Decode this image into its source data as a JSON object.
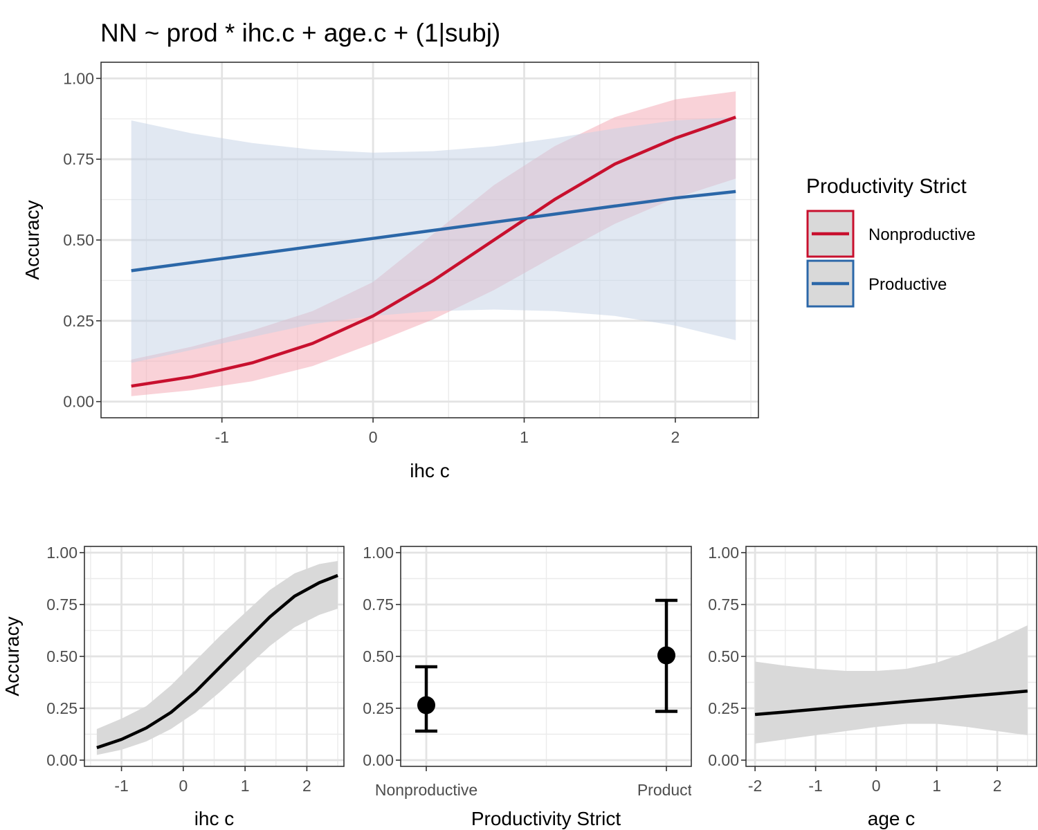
{
  "chart_data": [
    {
      "type": "line",
      "title": "NN ~ prod * ihc.c + age.c + (1|subj)",
      "xlabel": "ihc c",
      "ylabel": "Accuracy",
      "xlim": [
        -1.8,
        2.55
      ],
      "ylim": [
        -0.05,
        1.05
      ],
      "xticks": [
        -1,
        0,
        1,
        2
      ],
      "yticks": [
        0,
        0.25,
        0.5,
        0.75,
        1
      ],
      "xtick_labels": [
        "-1",
        "0",
        "1",
        "2"
      ],
      "ytick_labels": [
        "0.00",
        "0.25",
        "0.50",
        "0.75",
        "1.00"
      ],
      "grid": true,
      "legend_title": "Productivity Strict",
      "legend_position": "right",
      "x": [
        -1.6,
        -1.2,
        -0.8,
        -0.4,
        0.0,
        0.4,
        0.8,
        1.2,
        1.6,
        2.0,
        2.4
      ],
      "series": [
        {
          "name": "Nonproductive",
          "color": "#C8102E",
          "fill": "#F4A6B2",
          "y": [
            0.048,
            0.077,
            0.12,
            0.18,
            0.265,
            0.375,
            0.5,
            0.625,
            0.735,
            0.815,
            0.88
          ],
          "lower": [
            0.017,
            0.035,
            0.063,
            0.11,
            0.18,
            0.255,
            0.345,
            0.45,
            0.55,
            0.63,
            0.69
          ],
          "upper": [
            0.13,
            0.17,
            0.22,
            0.28,
            0.37,
            0.52,
            0.67,
            0.79,
            0.88,
            0.935,
            0.96
          ]
        },
        {
          "name": "Productive",
          "color": "#2B67A8",
          "fill": "#C4D2E6",
          "y": [
            0.405,
            0.43,
            0.455,
            0.48,
            0.505,
            0.53,
            0.555,
            0.58,
            0.605,
            0.63,
            0.65
          ],
          "lower": [
            0.12,
            0.16,
            0.2,
            0.24,
            0.265,
            0.28,
            0.285,
            0.28,
            0.265,
            0.235,
            0.19
          ],
          "upper": [
            0.87,
            0.83,
            0.8,
            0.78,
            0.77,
            0.775,
            0.79,
            0.815,
            0.845,
            0.87,
            0.88
          ]
        }
      ]
    },
    {
      "type": "line",
      "xlabel": "ihc c",
      "ylabel": "Accuracy",
      "xlim": [
        -1.6,
        2.6
      ],
      "ylim": [
        -0.03,
        1.03
      ],
      "xticks": [
        -1,
        0,
        1,
        2
      ],
      "yticks": [
        0,
        0.25,
        0.5,
        0.75,
        1
      ],
      "xtick_labels": [
        "-1",
        "0",
        "1",
        "2"
      ],
      "ytick_labels": [
        "0.00",
        "0.25",
        "0.50",
        "0.75",
        "1.00"
      ],
      "grid": true,
      "x": [
        -1.4,
        -1.0,
        -0.6,
        -0.2,
        0.2,
        0.6,
        1.0,
        1.4,
        1.8,
        2.2,
        2.5
      ],
      "series": [
        {
          "color": "#000000",
          "fill": "#D9D9D9",
          "y": [
            0.06,
            0.1,
            0.155,
            0.23,
            0.33,
            0.45,
            0.57,
            0.69,
            0.79,
            0.855,
            0.89
          ],
          "lower": [
            0.025,
            0.05,
            0.09,
            0.15,
            0.23,
            0.33,
            0.44,
            0.55,
            0.64,
            0.7,
            0.73
          ],
          "upper": [
            0.15,
            0.2,
            0.26,
            0.36,
            0.48,
            0.6,
            0.71,
            0.82,
            0.9,
            0.945,
            0.96
          ]
        }
      ]
    },
    {
      "type": "scatter",
      "xlabel": "Productivity Strict",
      "ylabel": "",
      "ylim": [
        -0.03,
        1.03
      ],
      "yticks": [
        0,
        0.25,
        0.5,
        0.75,
        1
      ],
      "ytick_labels": [
        "0.00",
        "0.25",
        "0.50",
        "0.75",
        "1.00"
      ],
      "categories": [
        "Nonproductive",
        "Productive"
      ],
      "category_labels": [
        "Nonproductive",
        "Producti"
      ],
      "grid": true,
      "values": [
        0.265,
        0.505
      ],
      "lower": [
        0.14,
        0.235
      ],
      "upper": [
        0.45,
        0.77
      ]
    },
    {
      "type": "line",
      "xlabel": "age c",
      "ylabel": "",
      "xlim": [
        -2.15,
        2.65
      ],
      "ylim": [
        -0.03,
        1.03
      ],
      "xticks": [
        -2,
        -1,
        0,
        1,
        2
      ],
      "yticks": [
        0,
        0.25,
        0.5,
        0.75,
        1
      ],
      "xtick_labels": [
        "-2",
        "-1",
        "0",
        "1",
        "2"
      ],
      "ytick_labels": [
        "0.00",
        "0.25",
        "0.50",
        "0.75",
        "1.00"
      ],
      "grid": true,
      "x": [
        -2.0,
        -1.5,
        -1.0,
        -0.5,
        0.0,
        0.5,
        1.0,
        1.5,
        2.0,
        2.5
      ],
      "series": [
        {
          "color": "#000000",
          "fill": "#D9D9D9",
          "y": [
            0.22,
            0.232,
            0.245,
            0.258,
            0.27,
            0.283,
            0.295,
            0.308,
            0.32,
            0.333
          ],
          "lower": [
            0.08,
            0.1,
            0.12,
            0.14,
            0.16,
            0.175,
            0.175,
            0.16,
            0.14,
            0.12
          ],
          "upper": [
            0.475,
            0.455,
            0.44,
            0.43,
            0.43,
            0.44,
            0.47,
            0.52,
            0.58,
            0.65
          ]
        }
      ]
    }
  ]
}
